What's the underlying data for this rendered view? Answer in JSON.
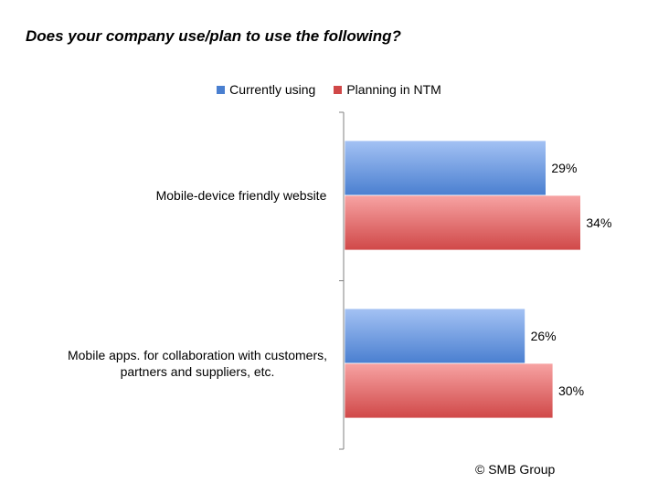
{
  "chart_data": {
    "type": "bar",
    "orientation": "horizontal",
    "title": "Does your company use/plan to use the following?",
    "categories": [
      "Mobile-device friendly website",
      "Mobile apps. for collaboration with customers, partners and suppliers, etc."
    ],
    "category_label_lines": [
      [
        "Mobile-device friendly website"
      ],
      [
        "Mobile apps. for collaboration with customers,",
        "partners and suppliers, etc."
      ]
    ],
    "series": [
      {
        "name": "Currently using",
        "values": [
          29,
          26
        ],
        "color": "#4a7fd0",
        "color_light": "#a4c2f4"
      },
      {
        "name": "Planning in NTM",
        "values": [
          34,
          30
        ],
        "color": "#d04848",
        "color_light": "#f7a3a3"
      }
    ],
    "value_suffix": "%",
    "xlim": [
      0,
      50
    ],
    "legend_position": "top",
    "grid": false
  },
  "credit": "© SMB Group"
}
